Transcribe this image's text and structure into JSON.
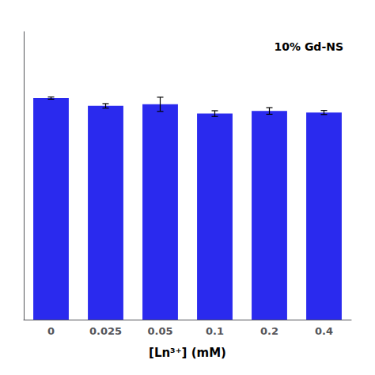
{
  "chart_data": {
    "type": "bar",
    "categories": [
      "0",
      "0.025",
      "0.05",
      "0.1",
      "0.2",
      "0.4"
    ],
    "values": [
      100.0,
      96.5,
      97.2,
      93.0,
      94.2,
      93.5
    ],
    "errors": [
      0.5,
      1.0,
      3.2,
      1.3,
      1.5,
      0.9
    ],
    "color": "#2a2aee",
    "xlabel": "[Ln³⁺] (mM)",
    "annotation": "10% Gd-NS",
    "ylim": [
      0,
      130
    ],
    "tick_labels": "x",
    "grid": false
  }
}
